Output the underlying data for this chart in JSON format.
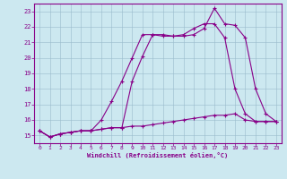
{
  "background_color": "#cce8f0",
  "line_color": "#880088",
  "grid_color": "#99bbcc",
  "xlabel": "Windchill (Refroidissement éolien,°C)",
  "xlim": [
    -0.5,
    23.5
  ],
  "ylim": [
    14.5,
    23.5
  ],
  "xticks": [
    0,
    1,
    2,
    3,
    4,
    5,
    6,
    7,
    8,
    9,
    10,
    11,
    12,
    13,
    14,
    15,
    16,
    17,
    18,
    19,
    20,
    21,
    22,
    23
  ],
  "yticks": [
    15,
    16,
    17,
    18,
    19,
    20,
    21,
    22,
    23
  ],
  "line1_x": [
    0,
    1,
    2,
    3,
    4,
    5,
    6,
    7,
    8,
    9,
    10,
    11,
    12,
    13,
    14,
    15,
    16,
    17,
    18,
    19,
    20,
    21,
    22,
    23
  ],
  "line1_y": [
    15.3,
    14.9,
    15.1,
    15.2,
    15.3,
    15.3,
    15.4,
    15.5,
    15.5,
    18.5,
    20.1,
    21.5,
    21.5,
    21.4,
    21.4,
    21.5,
    21.9,
    23.2,
    22.2,
    22.1,
    21.3,
    18.0,
    16.4,
    15.9
  ],
  "line2_x": [
    0,
    1,
    2,
    3,
    4,
    5,
    6,
    7,
    8,
    9,
    10,
    11,
    12,
    13,
    14,
    15,
    16,
    17,
    18,
    19,
    20,
    21,
    22,
    23
  ],
  "line2_y": [
    15.3,
    14.9,
    15.1,
    15.2,
    15.3,
    15.3,
    16.0,
    17.2,
    18.5,
    20.0,
    21.5,
    21.5,
    21.4,
    21.4,
    21.5,
    21.9,
    22.2,
    22.2,
    21.3,
    18.0,
    16.4,
    15.9,
    15.9,
    15.9
  ],
  "line3_x": [
    0,
    1,
    2,
    3,
    4,
    5,
    6,
    7,
    8,
    9,
    10,
    11,
    12,
    13,
    14,
    15,
    16,
    17,
    18,
    19,
    20,
    21,
    22,
    23
  ],
  "line3_y": [
    15.3,
    14.9,
    15.1,
    15.2,
    15.3,
    15.3,
    15.4,
    15.5,
    15.5,
    15.6,
    15.6,
    15.7,
    15.8,
    15.9,
    16.0,
    16.1,
    16.2,
    16.3,
    16.3,
    16.4,
    16.0,
    15.9,
    15.9,
    15.9
  ]
}
